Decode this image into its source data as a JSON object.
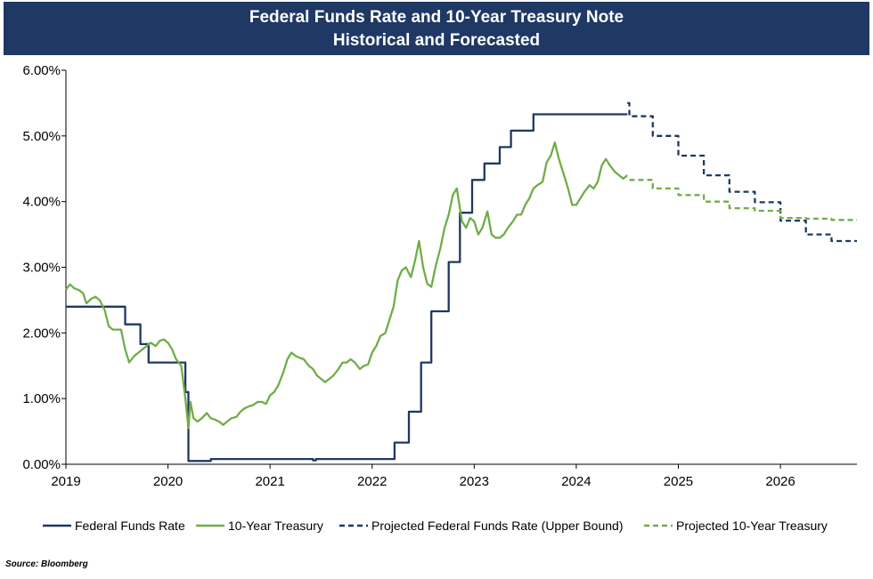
{
  "chart_data": {
    "type": "line",
    "title": "Federal Funds Rate and 10-Year Treasury Note",
    "subtitle": "Historical and Forecasted",
    "source": "Source: Bloomberg",
    "xlim": [
      2019.0,
      2026.75
    ],
    "ylim": [
      0,
      6
    ],
    "x_ticks": [
      2019,
      2020,
      2021,
      2022,
      2023,
      2024,
      2025,
      2026
    ],
    "x_tick_labels": [
      "2019",
      "2020",
      "2021",
      "2022",
      "2023",
      "2024",
      "2025",
      "2026"
    ],
    "y_ticks": [
      0,
      1,
      2,
      3,
      4,
      5,
      6
    ],
    "y_tick_labels": [
      "0.00%",
      "1.00%",
      "2.00%",
      "3.00%",
      "4.00%",
      "5.00%",
      "6.00%"
    ],
    "grid": false,
    "legend_position": "bottom",
    "series": [
      {
        "name": "Federal Funds Rate",
        "style": "solid",
        "color": "#1f3864",
        "step": true,
        "points": [
          [
            2019.0,
            2.4
          ],
          [
            2019.56,
            2.4
          ],
          [
            2019.58,
            2.13
          ],
          [
            2019.71,
            2.13
          ],
          [
            2019.73,
            1.83
          ],
          [
            2019.79,
            1.83
          ],
          [
            2019.81,
            1.55
          ],
          [
            2020.16,
            1.55
          ],
          [
            2020.17,
            1.1
          ],
          [
            2020.2,
            0.05
          ],
          [
            2020.42,
            0.08
          ],
          [
            2021.42,
            0.06
          ],
          [
            2021.45,
            0.08
          ],
          [
            2022.2,
            0.08
          ],
          [
            2022.22,
            0.33
          ],
          [
            2022.34,
            0.33
          ],
          [
            2022.36,
            0.8
          ],
          [
            2022.46,
            0.8
          ],
          [
            2022.48,
            1.55
          ],
          [
            2022.57,
            1.55
          ],
          [
            2022.58,
            2.33
          ],
          [
            2022.73,
            2.33
          ],
          [
            2022.75,
            3.08
          ],
          [
            2022.84,
            3.08
          ],
          [
            2022.86,
            3.83
          ],
          [
            2022.96,
            3.83
          ],
          [
            2022.98,
            4.33
          ],
          [
            2023.09,
            4.33
          ],
          [
            2023.1,
            4.58
          ],
          [
            2023.23,
            4.58
          ],
          [
            2023.25,
            4.83
          ],
          [
            2023.34,
            4.83
          ],
          [
            2023.36,
            5.08
          ],
          [
            2023.56,
            5.08
          ],
          [
            2023.58,
            5.33
          ],
          [
            2024.5,
            5.33
          ]
        ]
      },
      {
        "name": "10-Year Treasury",
        "style": "solid",
        "color": "#70ad47",
        "step": false,
        "points": [
          [
            2019.0,
            2.66
          ],
          [
            2019.04,
            2.74
          ],
          [
            2019.08,
            2.68
          ],
          [
            2019.13,
            2.65
          ],
          [
            2019.17,
            2.6
          ],
          [
            2019.2,
            2.45
          ],
          [
            2019.25,
            2.52
          ],
          [
            2019.29,
            2.55
          ],
          [
            2019.33,
            2.5
          ],
          [
            2019.38,
            2.35
          ],
          [
            2019.42,
            2.1
          ],
          [
            2019.46,
            2.05
          ],
          [
            2019.5,
            2.05
          ],
          [
            2019.54,
            2.05
          ],
          [
            2019.58,
            1.75
          ],
          [
            2019.62,
            1.55
          ],
          [
            2019.67,
            1.65
          ],
          [
            2019.71,
            1.7
          ],
          [
            2019.75,
            1.75
          ],
          [
            2019.79,
            1.8
          ],
          [
            2019.83,
            1.85
          ],
          [
            2019.88,
            1.8
          ],
          [
            2019.92,
            1.88
          ],
          [
            2019.96,
            1.9
          ],
          [
            2020.0,
            1.85
          ],
          [
            2020.04,
            1.75
          ],
          [
            2020.08,
            1.6
          ],
          [
            2020.13,
            1.5
          ],
          [
            2020.17,
            1.0
          ],
          [
            2020.2,
            0.55
          ],
          [
            2020.22,
            0.95
          ],
          [
            2020.25,
            0.7
          ],
          [
            2020.29,
            0.65
          ],
          [
            2020.33,
            0.7
          ],
          [
            2020.38,
            0.78
          ],
          [
            2020.42,
            0.7
          ],
          [
            2020.46,
            0.68
          ],
          [
            2020.5,
            0.65
          ],
          [
            2020.54,
            0.6
          ],
          [
            2020.58,
            0.65
          ],
          [
            2020.62,
            0.7
          ],
          [
            2020.67,
            0.72
          ],
          [
            2020.71,
            0.8
          ],
          [
            2020.75,
            0.85
          ],
          [
            2020.79,
            0.88
          ],
          [
            2020.83,
            0.9
          ],
          [
            2020.88,
            0.95
          ],
          [
            2020.92,
            0.95
          ],
          [
            2020.96,
            0.92
          ],
          [
            2021.0,
            1.05
          ],
          [
            2021.04,
            1.1
          ],
          [
            2021.08,
            1.2
          ],
          [
            2021.13,
            1.4
          ],
          [
            2021.17,
            1.6
          ],
          [
            2021.21,
            1.7
          ],
          [
            2021.25,
            1.65
          ],
          [
            2021.29,
            1.62
          ],
          [
            2021.33,
            1.6
          ],
          [
            2021.38,
            1.5
          ],
          [
            2021.42,
            1.45
          ],
          [
            2021.46,
            1.35
          ],
          [
            2021.5,
            1.3
          ],
          [
            2021.54,
            1.25
          ],
          [
            2021.58,
            1.3
          ],
          [
            2021.62,
            1.35
          ],
          [
            2021.67,
            1.45
          ],
          [
            2021.71,
            1.55
          ],
          [
            2021.75,
            1.55
          ],
          [
            2021.79,
            1.6
          ],
          [
            2021.83,
            1.55
          ],
          [
            2021.88,
            1.45
          ],
          [
            2021.92,
            1.5
          ],
          [
            2021.96,
            1.52
          ],
          [
            2022.0,
            1.7
          ],
          [
            2022.04,
            1.8
          ],
          [
            2022.08,
            1.95
          ],
          [
            2022.13,
            2.0
          ],
          [
            2022.17,
            2.2
          ],
          [
            2022.21,
            2.4
          ],
          [
            2022.25,
            2.8
          ],
          [
            2022.29,
            2.95
          ],
          [
            2022.33,
            3.0
          ],
          [
            2022.38,
            2.85
          ],
          [
            2022.42,
            3.1
          ],
          [
            2022.46,
            3.4
          ],
          [
            2022.5,
            3.0
          ],
          [
            2022.54,
            2.75
          ],
          [
            2022.58,
            2.7
          ],
          [
            2022.62,
            3.0
          ],
          [
            2022.67,
            3.3
          ],
          [
            2022.71,
            3.6
          ],
          [
            2022.75,
            3.8
          ],
          [
            2022.79,
            4.1
          ],
          [
            2022.83,
            4.2
          ],
          [
            2022.88,
            3.7
          ],
          [
            2022.92,
            3.6
          ],
          [
            2022.96,
            3.75
          ],
          [
            2023.0,
            3.7
          ],
          [
            2023.04,
            3.5
          ],
          [
            2023.08,
            3.6
          ],
          [
            2023.13,
            3.85
          ],
          [
            2023.17,
            3.5
          ],
          [
            2023.21,
            3.45
          ],
          [
            2023.25,
            3.45
          ],
          [
            2023.29,
            3.5
          ],
          [
            2023.33,
            3.6
          ],
          [
            2023.38,
            3.7
          ],
          [
            2023.42,
            3.8
          ],
          [
            2023.46,
            3.8
          ],
          [
            2023.5,
            3.95
          ],
          [
            2023.54,
            4.05
          ],
          [
            2023.58,
            4.2
          ],
          [
            2023.62,
            4.25
          ],
          [
            2023.67,
            4.3
          ],
          [
            2023.71,
            4.6
          ],
          [
            2023.75,
            4.7
          ],
          [
            2023.79,
            4.9
          ],
          [
            2023.83,
            4.65
          ],
          [
            2023.88,
            4.4
          ],
          [
            2023.92,
            4.2
          ],
          [
            2023.96,
            3.95
          ],
          [
            2024.0,
            3.95
          ],
          [
            2024.04,
            4.05
          ],
          [
            2024.08,
            4.15
          ],
          [
            2024.13,
            4.25
          ],
          [
            2024.17,
            4.2
          ],
          [
            2024.21,
            4.3
          ],
          [
            2024.25,
            4.55
          ],
          [
            2024.29,
            4.65
          ],
          [
            2024.33,
            4.55
          ],
          [
            2024.38,
            4.45
          ],
          [
            2024.42,
            4.4
          ],
          [
            2024.46,
            4.35
          ],
          [
            2024.5,
            4.4
          ]
        ]
      },
      {
        "name": "Projected Federal Funds Rate (Upper Bound)",
        "style": "dashed",
        "color": "#1f3864",
        "step": true,
        "points": [
          [
            2024.5,
            5.5
          ],
          [
            2024.52,
            5.3
          ],
          [
            2024.75,
            5.3
          ],
          [
            2024.75,
            5.0
          ],
          [
            2025.0,
            5.0
          ],
          [
            2025.0,
            4.7
          ],
          [
            2025.25,
            4.7
          ],
          [
            2025.25,
            4.4
          ],
          [
            2025.5,
            4.4
          ],
          [
            2025.5,
            4.15
          ],
          [
            2025.75,
            4.15
          ],
          [
            2025.75,
            3.99
          ],
          [
            2026.0,
            3.99
          ],
          [
            2026.0,
            3.71
          ],
          [
            2026.25,
            3.71
          ],
          [
            2026.25,
            3.5
          ],
          [
            2026.5,
            3.5
          ],
          [
            2026.5,
            3.4
          ],
          [
            2026.75,
            3.4
          ]
        ]
      },
      {
        "name": "Projected 10-Year Treasury",
        "style": "dashed",
        "color": "#70ad47",
        "step": true,
        "points": [
          [
            2024.52,
            4.33
          ],
          [
            2024.75,
            4.33
          ],
          [
            2024.75,
            4.2
          ],
          [
            2025.0,
            4.2
          ],
          [
            2025.0,
            4.1
          ],
          [
            2025.25,
            4.1
          ],
          [
            2025.25,
            4.0
          ],
          [
            2025.5,
            4.0
          ],
          [
            2025.5,
            3.9
          ],
          [
            2025.75,
            3.9
          ],
          [
            2025.75,
            3.86
          ],
          [
            2026.0,
            3.86
          ],
          [
            2026.0,
            3.75
          ],
          [
            2026.25,
            3.75
          ],
          [
            2026.25,
            3.74
          ],
          [
            2026.5,
            3.74
          ],
          [
            2026.5,
            3.72
          ],
          [
            2026.75,
            3.72
          ]
        ]
      }
    ]
  }
}
